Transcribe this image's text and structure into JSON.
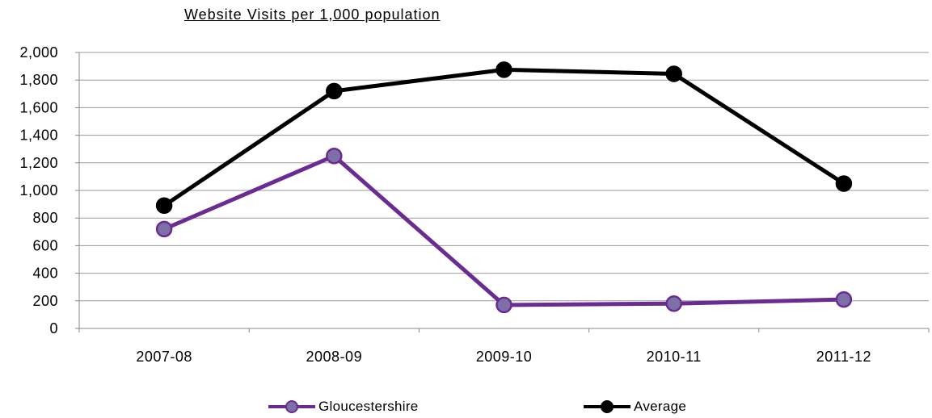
{
  "chart_data": {
    "type": "line",
    "title": "Website Visits per 1,000 population",
    "categories": [
      "2007-08",
      "2008-09",
      "2009-10",
      "2010-11",
      "2011-12"
    ],
    "ylim": [
      0,
      2000
    ],
    "yticks": [
      "0",
      "200",
      "400",
      "600",
      "800",
      "1,000",
      "1,200",
      "1,400",
      "1,600",
      "1,800",
      "2,000"
    ],
    "grid": true,
    "legend_position": "bottom",
    "series": [
      {
        "name": "Gloucestershire",
        "values": [
          720,
          1250,
          170,
          180,
          210
        ],
        "color": "#6a2c91",
        "marker_fill": "#7d6fa8"
      },
      {
        "name": "Average",
        "values": [
          890,
          1720,
          1875,
          1845,
          1050
        ],
        "color": "#000000",
        "marker_fill": "#000000"
      }
    ]
  }
}
